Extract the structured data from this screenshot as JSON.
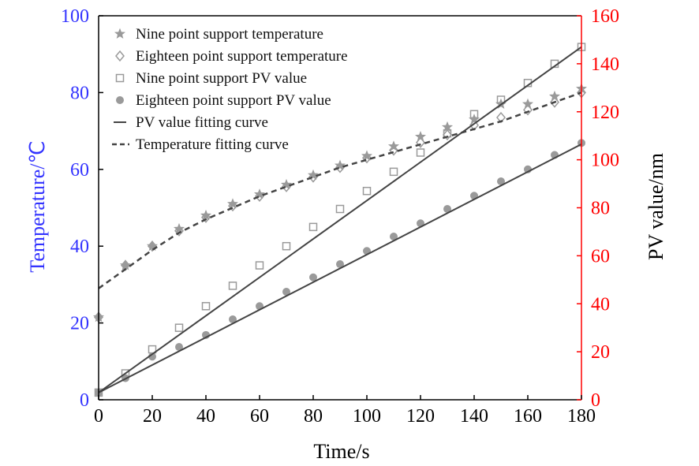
{
  "chart_data": {
    "type": "scatter",
    "xlabel": "Time/s",
    "ylabel_left": "Temperature/℃",
    "ylabel_right": "PV value/nm",
    "xlim": [
      0,
      180
    ],
    "ylim_left": [
      0,
      100
    ],
    "ylim_right": [
      0,
      160
    ],
    "x_ticks": [
      0,
      20,
      40,
      60,
      80,
      100,
      120,
      140,
      160,
      180
    ],
    "y_ticks_left": [
      0,
      20,
      40,
      60,
      80,
      100
    ],
    "y_ticks_right": [
      0,
      20,
      40,
      60,
      80,
      100,
      120,
      140,
      160
    ],
    "legend_position": "top-left",
    "grid": false,
    "colors": {
      "left_axis": "#3333ff",
      "right_axis": "#ff0000",
      "frame": "#000000",
      "markers": "#9a9a9a",
      "curves": "#444444"
    },
    "series": [
      {
        "name": "Nine point support temperature",
        "axis": "left",
        "marker": "star",
        "x": [
          0,
          10,
          20,
          30,
          40,
          50,
          60,
          70,
          80,
          90,
          100,
          110,
          120,
          130,
          140,
          150,
          160,
          170,
          180
        ],
        "y": [
          21.5,
          35,
          40,
          44.5,
          48,
          51,
          53.5,
          56,
          58.5,
          61,
          63.5,
          66,
          68.5,
          71,
          73,
          77,
          77,
          79,
          81
        ]
      },
      {
        "name": "Eighteen point support temperature",
        "axis": "left",
        "marker": "diamond",
        "x": [
          0,
          10,
          20,
          30,
          40,
          50,
          60,
          70,
          80,
          90,
          100,
          110,
          120,
          130,
          140,
          150,
          160,
          170,
          180
        ],
        "y": [
          21.5,
          35,
          40,
          44,
          47.5,
          50.5,
          53,
          55.5,
          58,
          60.5,
          63,
          65,
          67,
          69,
          71.5,
          73.5,
          75.5,
          77.5,
          80
        ]
      },
      {
        "name": "Nine point support PV value",
        "axis": "right",
        "marker": "square",
        "x": [
          0,
          10,
          20,
          30,
          40,
          50,
          60,
          70,
          80,
          90,
          100,
          110,
          120,
          130,
          140,
          150,
          160,
          170,
          180
        ],
        "y": [
          3,
          11,
          21,
          30,
          39,
          47.5,
          56,
          64,
          72,
          79.5,
          87,
          95,
          103,
          111,
          119,
          125,
          132,
          140,
          147
        ]
      },
      {
        "name": "Eighteen point support PV value",
        "axis": "right",
        "marker": "circle",
        "x": [
          0,
          10,
          20,
          30,
          40,
          50,
          60,
          70,
          80,
          90,
          100,
          110,
          120,
          130,
          140,
          150,
          160,
          170,
          180
        ],
        "y": [
          3,
          9,
          18,
          22,
          27,
          33.5,
          39,
          45,
          51,
          56.5,
          62,
          68,
          73.5,
          79.5,
          85,
          91,
          96,
          102,
          107
        ]
      },
      {
        "name": "PV value fitting curve",
        "axis": "right",
        "style": "solid",
        "curves": [
          {
            "x": [
              0,
              180
            ],
            "y": [
              3,
              147
            ]
          },
          {
            "x": [
              0,
              180
            ],
            "y": [
              3,
              106.5
            ]
          }
        ]
      },
      {
        "name": "Temperature fitting curve",
        "axis": "left",
        "style": "dashed",
        "x": [
          0,
          10,
          20,
          30,
          40,
          50,
          60,
          70,
          80,
          90,
          100,
          110,
          120,
          130,
          140,
          150,
          160,
          170,
          180
        ],
        "y": [
          29,
          34,
          39,
          43.5,
          47,
          50,
          53,
          55.5,
          58,
          60.5,
          62.5,
          64.5,
          66.5,
          68.5,
          70.5,
          72.5,
          75,
          77.5,
          80
        ]
      }
    ]
  }
}
